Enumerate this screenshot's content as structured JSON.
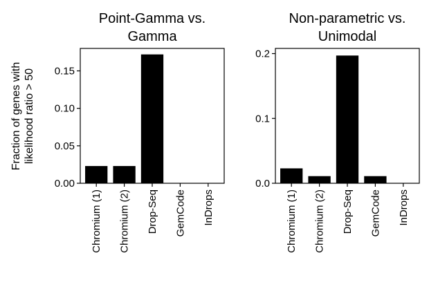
{
  "figure": {
    "ylabel_lines": [
      "Fraction of genes with",
      "likelihood ratio > 50"
    ]
  },
  "chart_data": [
    {
      "type": "bar",
      "title_lines": [
        "Point-Gamma vs.",
        "Gamma"
      ],
      "categories": [
        "Chromium (1)",
        "Chromium (2)",
        "Drop-Seq",
        "GemCode",
        "InDrops"
      ],
      "values": [
        0.023,
        0.023,
        0.172,
        0.0,
        0.0
      ],
      "ylim": [
        0,
        0.18
      ],
      "yticks": [
        0.0,
        0.05,
        0.1,
        0.15
      ],
      "ytick_labels": [
        "0.00",
        "0.05",
        "0.10",
        "0.15"
      ],
      "bar_color": "#000000",
      "grid": false,
      "legend": "none"
    },
    {
      "type": "bar",
      "title_lines": [
        "Non-parametric vs.",
        "Unimodal"
      ],
      "categories": [
        "Chromium (1)",
        "Chromium (2)",
        "Drop-Seq",
        "GemCode",
        "InDrops"
      ],
      "values": [
        0.023,
        0.011,
        0.197,
        0.011,
        0.0
      ],
      "ylim": [
        0,
        0.208
      ],
      "yticks": [
        0.0,
        0.1,
        0.2
      ],
      "ytick_labels": [
        "0.0",
        "0.1",
        "0.2"
      ],
      "bar_color": "#000000",
      "grid": false,
      "legend": "none"
    }
  ]
}
